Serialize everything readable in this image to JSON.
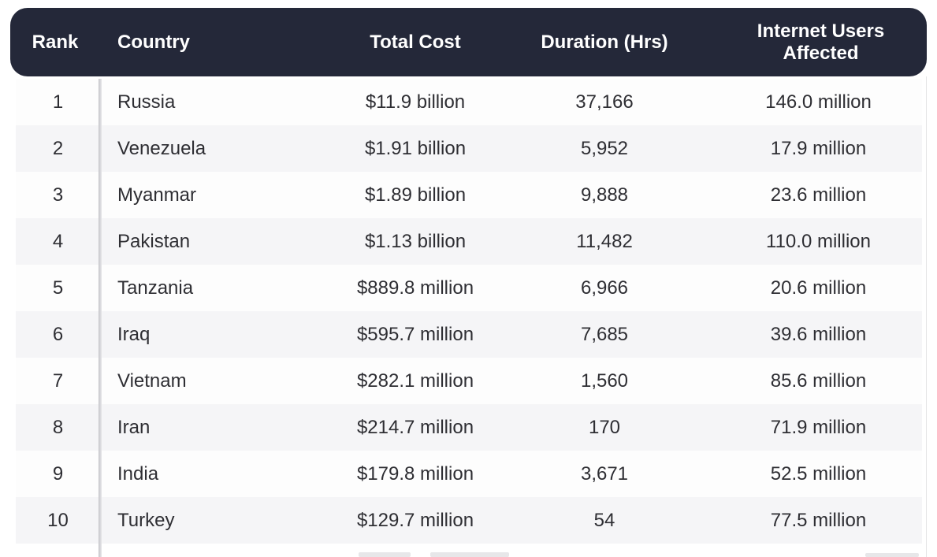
{
  "chart_data": {
    "type": "table",
    "title": "",
    "columns": [
      "Rank",
      "Country",
      "Total Cost",
      "Duration (Hrs)",
      "Internet Users Affected"
    ],
    "rows": [
      {
        "rank": "1",
        "country": "Russia",
        "total_cost": "$11.9 billion",
        "duration_hrs": "37,166",
        "users_affected": "146.0 million"
      },
      {
        "rank": "2",
        "country": "Venezuela",
        "total_cost": "$1.91 billion",
        "duration_hrs": "5,952",
        "users_affected": "17.9 million"
      },
      {
        "rank": "3",
        "country": "Myanmar",
        "total_cost": "$1.89 billion",
        "duration_hrs": "9,888",
        "users_affected": "23.6 million"
      },
      {
        "rank": "4",
        "country": "Pakistan",
        "total_cost": "$1.13 billion",
        "duration_hrs": "11,482",
        "users_affected": "110.0 million"
      },
      {
        "rank": "5",
        "country": "Tanzania",
        "total_cost": "$889.8 million",
        "duration_hrs": "6,966",
        "users_affected": "20.6 million"
      },
      {
        "rank": "6",
        "country": "Iraq",
        "total_cost": "$595.7 million",
        "duration_hrs": "7,685",
        "users_affected": "39.6 million"
      },
      {
        "rank": "7",
        "country": "Vietnam",
        "total_cost": "$282.1 million",
        "duration_hrs": "1,560",
        "users_affected": "85.6 million"
      },
      {
        "rank": "8",
        "country": "Iran",
        "total_cost": "$214.7 million",
        "duration_hrs": "170",
        "users_affected": "71.9 million"
      },
      {
        "rank": "9",
        "country": "India",
        "total_cost": "$179.8 million",
        "duration_hrs": "3,671",
        "users_affected": "52.5 million"
      },
      {
        "rank": "10",
        "country": "Turkey",
        "total_cost": "$129.7 million",
        "duration_hrs": "54",
        "users_affected": "77.5 million"
      }
    ]
  },
  "colors": {
    "header_bg": "#242839",
    "header_text": "#ffffff",
    "row_white": "#fdfdfd",
    "row_alt": "#f5f5f7",
    "body_text": "#2e2e33",
    "divider": "#c6c6ca"
  }
}
